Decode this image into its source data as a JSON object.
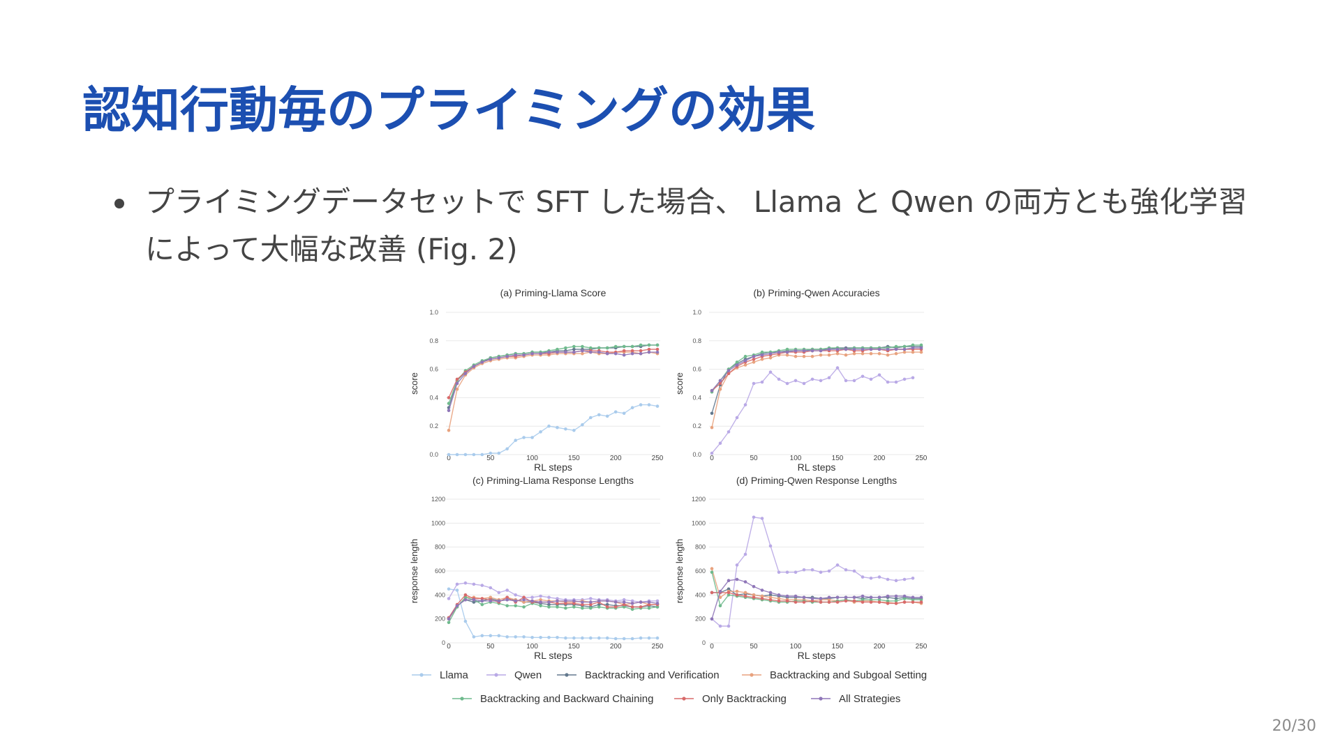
{
  "slide": {
    "title": "認知行動毎のプライミングの効果",
    "bullets": [
      "プライミングデータセットで SFT した場合、 Llama と Qwen の両方とも強化学習によって大幅な改善 (Fig. 2)"
    ],
    "page_number": "20/30"
  },
  "legend": [
    {
      "name": "Llama",
      "color": "#a9cbec"
    },
    {
      "name": "Qwen",
      "color": "#b9a9e6"
    },
    {
      "name": "Backtracking and Verification",
      "color": "#63798e"
    },
    {
      "name": "Backtracking and Subgoal Setting",
      "color": "#e8a27e"
    },
    {
      "name": "Backtracking and Backward Chaining",
      "color": "#6fba8d"
    },
    {
      "name": "Only Backtracking",
      "color": "#d86a6a"
    },
    {
      "name": "All Strategies",
      "color": "#8f76b8"
    }
  ],
  "chart_data": [
    {
      "type": "line",
      "title": "(a) Priming-Llama Score",
      "xlabel": "RL steps",
      "ylabel": "score",
      "xlim": [
        0,
        250
      ],
      "ylim": [
        0,
        1.0
      ],
      "xticks": [
        "0",
        "50",
        "100",
        "150",
        "200",
        "250"
      ],
      "yticks": [
        "0.0",
        "0.2",
        "0.4",
        "0.6",
        "0.8",
        "1.0"
      ],
      "grid": true,
      "x": [
        0,
        10,
        20,
        30,
        40,
        50,
        60,
        70,
        80,
        90,
        100,
        110,
        120,
        130,
        140,
        150,
        160,
        170,
        180,
        190,
        200,
        210,
        220,
        230,
        240,
        250
      ],
      "series": [
        {
          "name": "Llama",
          "values": [
            0.0,
            0.0,
            0.0,
            0.0,
            0.0,
            0.01,
            0.01,
            0.04,
            0.1,
            0.12,
            0.12,
            0.16,
            0.2,
            0.19,
            0.18,
            0.17,
            0.21,
            0.26,
            0.28,
            0.27,
            0.3,
            0.29,
            0.33,
            0.35,
            0.35,
            0.34
          ]
        },
        {
          "name": "Backtracking and Verification",
          "values": [
            0.33,
            0.52,
            0.58,
            0.62,
            0.65,
            0.68,
            0.69,
            0.7,
            0.71,
            0.71,
            0.72,
            0.72,
            0.72,
            0.73,
            0.73,
            0.74,
            0.74,
            0.74,
            0.75,
            0.75,
            0.75,
            0.76,
            0.76,
            0.76,
            0.77,
            0.77
          ]
        },
        {
          "name": "Backtracking and Subgoal Setting",
          "values": [
            0.17,
            0.46,
            0.56,
            0.61,
            0.64,
            0.66,
            0.67,
            0.68,
            0.68,
            0.69,
            0.7,
            0.7,
            0.7,
            0.71,
            0.71,
            0.71,
            0.71,
            0.72,
            0.71,
            0.71,
            0.72,
            0.72,
            0.72,
            0.71,
            0.72,
            0.71
          ]
        },
        {
          "name": "Backtracking and Backward Chaining",
          "values": [
            0.36,
            0.52,
            0.59,
            0.63,
            0.66,
            0.68,
            0.69,
            0.7,
            0.71,
            0.71,
            0.72,
            0.72,
            0.73,
            0.74,
            0.75,
            0.76,
            0.76,
            0.75,
            0.75,
            0.75,
            0.76,
            0.76,
            0.76,
            0.77,
            0.77,
            0.77
          ]
        },
        {
          "name": "Only Backtracking",
          "values": [
            0.4,
            0.53,
            0.58,
            0.62,
            0.65,
            0.67,
            0.68,
            0.69,
            0.69,
            0.7,
            0.71,
            0.71,
            0.71,
            0.72,
            0.72,
            0.72,
            0.73,
            0.73,
            0.73,
            0.72,
            0.72,
            0.73,
            0.73,
            0.73,
            0.74,
            0.74
          ]
        },
        {
          "name": "All Strategies",
          "values": [
            0.31,
            0.5,
            0.57,
            0.62,
            0.65,
            0.67,
            0.68,
            0.69,
            0.7,
            0.7,
            0.71,
            0.71,
            0.72,
            0.72,
            0.72,
            0.72,
            0.73,
            0.72,
            0.72,
            0.71,
            0.71,
            0.7,
            0.71,
            0.71,
            0.72,
            0.72
          ]
        }
      ]
    },
    {
      "type": "line",
      "title": "(b) Priming-Qwen Accuracies",
      "xlabel": "RL steps",
      "ylabel": "score",
      "xlim": [
        0,
        250
      ],
      "ylim": [
        0,
        1.0
      ],
      "xticks": [
        "0",
        "50",
        "100",
        "150",
        "200",
        "250"
      ],
      "yticks": [
        "0.0",
        "0.2",
        "0.4",
        "0.6",
        "0.8",
        "1.0"
      ],
      "grid": true,
      "x": [
        0,
        10,
        20,
        30,
        40,
        50,
        60,
        70,
        80,
        90,
        100,
        110,
        120,
        130,
        140,
        150,
        160,
        170,
        180,
        190,
        200,
        210,
        220,
        230,
        240,
        250
      ],
      "series": [
        {
          "name": "Qwen",
          "values": [
            0.01,
            0.08,
            0.16,
            0.26,
            0.35,
            0.5,
            0.51,
            0.58,
            0.53,
            0.5,
            0.52,
            0.5,
            0.53,
            0.52,
            0.54,
            0.61,
            0.52,
            0.52,
            0.55,
            0.53,
            0.56,
            0.51,
            0.51,
            0.53,
            0.54,
            null
          ]
        },
        {
          "name": "Backtracking and Verification",
          "values": [
            0.29,
            0.49,
            0.6,
            0.64,
            0.67,
            0.69,
            0.71,
            0.72,
            0.72,
            0.73,
            0.73,
            0.73,
            0.74,
            0.74,
            0.74,
            0.75,
            0.75,
            0.75,
            0.75,
            0.75,
            0.75,
            0.76,
            0.75,
            0.76,
            0.76,
            0.76
          ]
        },
        {
          "name": "Backtracking and Subgoal Setting",
          "values": [
            0.19,
            0.46,
            0.57,
            0.61,
            0.63,
            0.65,
            0.67,
            0.68,
            0.7,
            0.7,
            0.69,
            0.69,
            0.69,
            0.7,
            0.7,
            0.71,
            0.7,
            0.71,
            0.71,
            0.71,
            0.71,
            0.7,
            0.71,
            0.72,
            0.72,
            0.72
          ]
        },
        {
          "name": "Backtracking and Backward Chaining",
          "values": [
            0.44,
            0.52,
            0.6,
            0.65,
            0.69,
            0.7,
            0.72,
            0.72,
            0.73,
            0.74,
            0.74,
            0.74,
            0.74,
            0.74,
            0.75,
            0.75,
            0.74,
            0.75,
            0.75,
            0.75,
            0.75,
            0.75,
            0.76,
            0.76,
            0.77,
            0.77
          ]
        },
        {
          "name": "Only Backtracking",
          "values": [
            0.45,
            0.5,
            0.57,
            0.62,
            0.65,
            0.67,
            0.69,
            0.7,
            0.71,
            0.72,
            0.72,
            0.72,
            0.73,
            0.73,
            0.73,
            0.73,
            0.74,
            0.73,
            0.73,
            0.74,
            0.74,
            0.73,
            0.74,
            0.74,
            0.74,
            0.74
          ]
        },
        {
          "name": "All Strategies",
          "values": [
            0.45,
            0.52,
            0.59,
            0.63,
            0.66,
            0.69,
            0.7,
            0.71,
            0.72,
            0.72,
            0.73,
            0.73,
            0.73,
            0.73,
            0.74,
            0.74,
            0.74,
            0.74,
            0.74,
            0.74,
            0.74,
            0.74,
            0.74,
            0.74,
            0.75,
            0.75
          ]
        }
      ]
    },
    {
      "type": "line",
      "title": "(c) Priming-Llama Response Lengths",
      "xlabel": "RL steps",
      "ylabel": "response length",
      "xlim": [
        0,
        250
      ],
      "ylim": [
        0,
        1200
      ],
      "xticks": [
        "0",
        "50",
        "100",
        "150",
        "200",
        "250"
      ],
      "yticks": [
        "0",
        "200",
        "400",
        "600",
        "800",
        "1000",
        "1200"
      ],
      "grid": true,
      "x": [
        0,
        10,
        20,
        30,
        40,
        50,
        60,
        70,
        80,
        90,
        100,
        110,
        120,
        130,
        140,
        150,
        160,
        170,
        180,
        190,
        200,
        210,
        220,
        230,
        240,
        250
      ],
      "series": [
        {
          "name": "Llama",
          "values": [
            450,
            440,
            180,
            50,
            60,
            60,
            60,
            50,
            50,
            50,
            45,
            45,
            45,
            45,
            40,
            40,
            40,
            40,
            40,
            40,
            35,
            35,
            35,
            40,
            40,
            40
          ]
        },
        {
          "name": "Qwen",
          "values": [
            370,
            490,
            500,
            490,
            480,
            460,
            420,
            440,
            400,
            380,
            380,
            390,
            380,
            370,
            360,
            360,
            360,
            370,
            360,
            360,
            350,
            360,
            350,
            340,
            350,
            350
          ]
        },
        {
          "name": "Backtracking and Verification",
          "values": [
            210,
            310,
            360,
            340,
            350,
            370,
            350,
            360,
            360,
            340,
            340,
            330,
            320,
            320,
            320,
            320,
            310,
            300,
            320,
            320,
            310,
            310,
            300,
            300,
            310,
            300
          ]
        },
        {
          "name": "Backtracking and Subgoal Setting",
          "values": [
            200,
            300,
            380,
            380,
            370,
            380,
            360,
            380,
            360,
            340,
            350,
            360,
            350,
            350,
            340,
            340,
            350,
            340,
            350,
            350,
            340,
            320,
            330,
            340,
            320,
            320
          ]
        },
        {
          "name": "Backtracking and Backward Chaining",
          "values": [
            170,
            300,
            380,
            360,
            320,
            340,
            330,
            310,
            310,
            300,
            330,
            310,
            300,
            300,
            290,
            300,
            290,
            290,
            300,
            290,
            290,
            300,
            280,
            290,
            290,
            300
          ]
        },
        {
          "name": "Only Backtracking",
          "values": [
            210,
            320,
            400,
            370,
            370,
            360,
            340,
            380,
            340,
            380,
            340,
            340,
            340,
            330,
            330,
            330,
            320,
            320,
            340,
            300,
            300,
            320,
            300,
            300,
            320,
            320
          ]
        },
        {
          "name": "All Strategies",
          "values": [
            200,
            310,
            360,
            360,
            350,
            350,
            350,
            360,
            350,
            360,
            350,
            340,
            340,
            350,
            350,
            350,
            340,
            340,
            350,
            350,
            340,
            340,
            330,
            340,
            340,
            330
          ]
        }
      ]
    },
    {
      "type": "line",
      "title": "(d) Priming-Qwen Response Lengths",
      "xlabel": "RL steps",
      "ylabel": "response length",
      "xlim": [
        0,
        250
      ],
      "ylim": [
        0,
        1200
      ],
      "xticks": [
        "0",
        "50",
        "100",
        "150",
        "200",
        "250"
      ],
      "yticks": [
        "0",
        "200",
        "400",
        "600",
        "800",
        "1000",
        "1200"
      ],
      "grid": true,
      "x": [
        0,
        10,
        20,
        30,
        40,
        50,
        60,
        70,
        80,
        90,
        100,
        110,
        120,
        130,
        140,
        150,
        160,
        170,
        180,
        190,
        200,
        210,
        220,
        230,
        240,
        250
      ],
      "series": [
        {
          "name": "Qwen",
          "values": [
            200,
            140,
            140,
            650,
            740,
            1050,
            1040,
            810,
            590,
            590,
            590,
            610,
            610,
            590,
            600,
            650,
            610,
            600,
            550,
            540,
            550,
            530,
            520,
            530,
            540,
            null
          ]
        },
        {
          "name": "Backtracking and Verification",
          "values": [
            420,
            420,
            450,
            400,
            410,
            400,
            390,
            400,
            390,
            380,
            380,
            380,
            380,
            370,
            370,
            380,
            380,
            380,
            370,
            380,
            380,
            380,
            370,
            380,
            370,
            370
          ]
        },
        {
          "name": "Backtracking and Subgoal Setting",
          "values": [
            620,
            380,
            430,
            430,
            420,
            400,
            390,
            380,
            370,
            360,
            360,
            360,
            350,
            360,
            360,
            350,
            360,
            340,
            350,
            350,
            340,
            340,
            330,
            340,
            340,
            330
          ]
        },
        {
          "name": "Backtracking and Backward Chaining",
          "values": [
            590,
            310,
            400,
            390,
            380,
            370,
            360,
            350,
            340,
            340,
            350,
            350,
            340,
            340,
            340,
            350,
            360,
            350,
            360,
            360,
            360,
            350,
            350,
            370,
            360,
            360
          ]
        },
        {
          "name": "Only Backtracking",
          "values": [
            420,
            420,
            420,
            400,
            390,
            380,
            370,
            360,
            350,
            350,
            340,
            340,
            350,
            340,
            340,
            340,
            350,
            350,
            340,
            340,
            340,
            330,
            330,
            340,
            340,
            340
          ]
        },
        {
          "name": "All Strategies",
          "values": [
            200,
            430,
            520,
            530,
            510,
            470,
            440,
            420,
            400,
            390,
            390,
            380,
            370,
            370,
            380,
            380,
            380,
            380,
            390,
            380,
            380,
            390,
            390,
            390,
            380,
            380
          ]
        }
      ]
    }
  ]
}
